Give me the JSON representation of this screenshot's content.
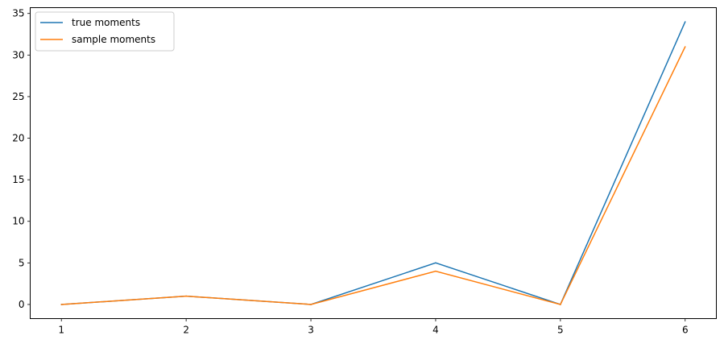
{
  "chart_data": {
    "type": "line",
    "x": [
      1,
      2,
      3,
      4,
      5,
      6
    ],
    "series": [
      {
        "name": "true moments",
        "values": [
          0,
          1,
          0,
          5,
          0,
          34
        ],
        "color": "#1f77b4"
      },
      {
        "name": "sample moments",
        "values": [
          0,
          1,
          0,
          4,
          0,
          31
        ],
        "color": "#ff7f0e"
      }
    ],
    "xticks": [
      1,
      2,
      3,
      4,
      5,
      6
    ],
    "yticks": [
      0,
      5,
      10,
      15,
      20,
      25,
      30,
      35
    ],
    "xlim": [
      0.75,
      6.25
    ],
    "ylim": [
      -1.7,
      35.7
    ],
    "grid": false,
    "legend": "top-left",
    "title": "",
    "xlabel": "",
    "ylabel": ""
  }
}
